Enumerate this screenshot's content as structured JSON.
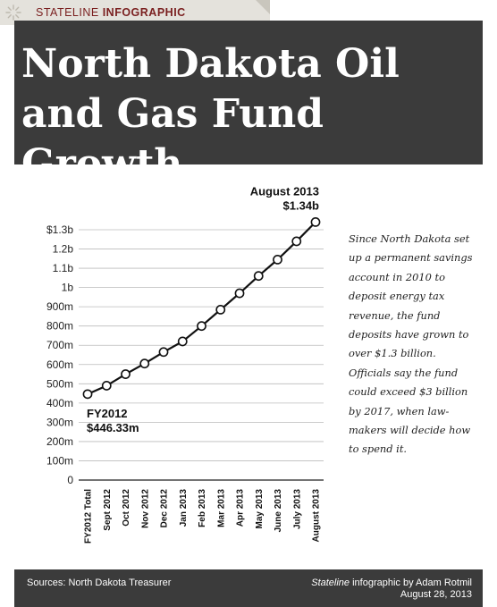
{
  "header": {
    "tag_prefix": "STATELINE",
    "tag_bold": "INFOGRAPHIC",
    "title": "North Dakota Oil and Gas Fund Growth",
    "logo_icon": "sun-burst-icon"
  },
  "colors": {
    "banner": "#3b3b3b",
    "tag_text": "#7a1f1f",
    "tag_bg": "#e4e2dc",
    "line": "#111111",
    "grid": "#bbbbbb"
  },
  "chart_data": {
    "type": "line",
    "categories": [
      "FY2012 Total",
      "Sept 2012",
      "Oct 2012",
      "Nov 2012",
      "Dec 2012",
      "Jan 2013",
      "Feb 2013",
      "Mar 2013",
      "Apr 2013",
      "May 2013",
      "June 2013",
      "July 2013",
      "August 2013"
    ],
    "values": [
      446.33,
      490,
      550,
      605,
      665,
      720,
      800,
      885,
      970,
      1060,
      1145,
      1240,
      1340
    ],
    "unit": "millions of dollars",
    "y_ticks": [
      {
        "value": 0,
        "label": "0"
      },
      {
        "value": 100,
        "label": "100m"
      },
      {
        "value": 200,
        "label": "200m"
      },
      {
        "value": 300,
        "label": "300m"
      },
      {
        "value": 400,
        "label": "400m"
      },
      {
        "value": 500,
        "label": "500m"
      },
      {
        "value": 600,
        "label": "600m"
      },
      {
        "value": 700,
        "label": "700m"
      },
      {
        "value": 800,
        "label": "800m"
      },
      {
        "value": 900,
        "label": "900m"
      },
      {
        "value": 1000,
        "label": "1b"
      },
      {
        "value": 1100,
        "label": "1.1b"
      },
      {
        "value": 1200,
        "label": "1.2b"
      },
      {
        "value": 1300,
        "label": "$1.3b"
      }
    ],
    "ylim": [
      0,
      1300
    ],
    "grid": true,
    "annotations": [
      {
        "index": 0,
        "line1": "FY2012",
        "line2": "$446.33m"
      },
      {
        "index": 12,
        "line1": "August 2013",
        "line2": "$1.34b"
      }
    ]
  },
  "sidebar": {
    "text": "Since North Dakota set up a permanent savings account in 2010 to deposit energy tax revenue, the fund deposits have grown to over $1.3 billion. Officials say the fund could exceed $3 billion by 2017, when law-makers will decide how to spend it."
  },
  "footer": {
    "source": "Sources: North Dakota Treasurer",
    "credit_italic": "Stateline",
    "credit_rest": " infographic by Adam Rotmil",
    "date": "August 28, 2013"
  }
}
